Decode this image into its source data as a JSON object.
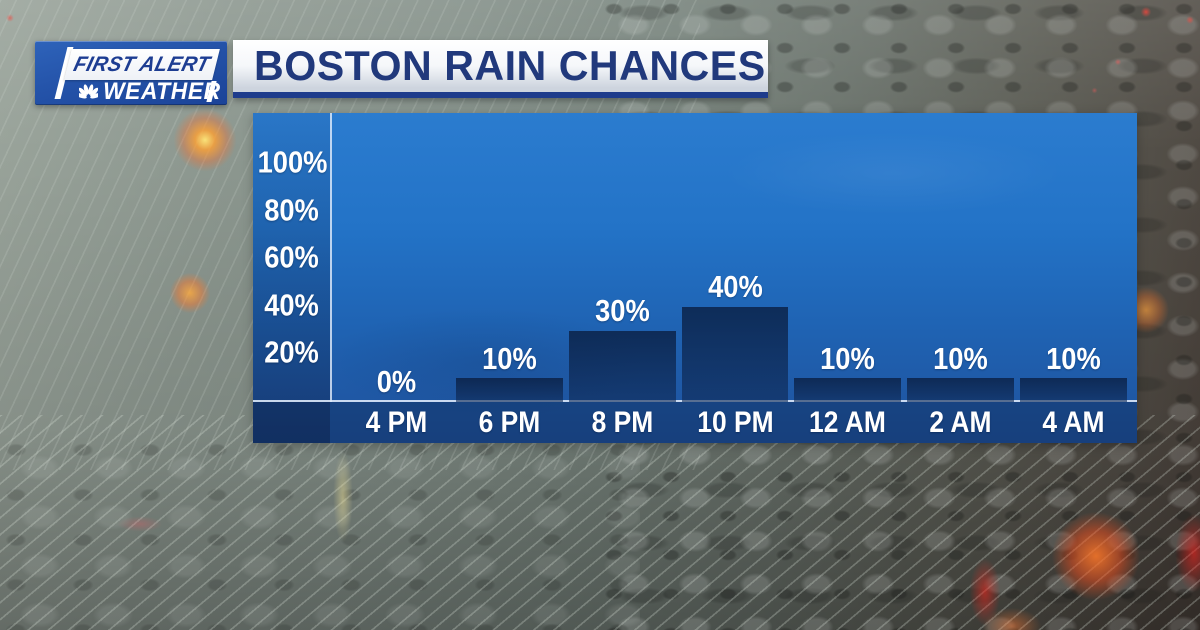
{
  "header": {
    "logo": {
      "line1": "FIRST ALERT",
      "line2": "WEATHER",
      "icon": "nbc-peacock-icon"
    },
    "title": "BOSTON RAIN CHANCES"
  },
  "chart_data": {
    "type": "bar",
    "title": "BOSTON RAIN CHANCES",
    "categories": [
      "4 PM",
      "6 PM",
      "8 PM",
      "10 PM",
      "12 AM",
      "2 AM",
      "4 AM"
    ],
    "values": [
      0,
      10,
      30,
      40,
      10,
      10,
      10
    ],
    "value_labels": [
      "0%",
      "10%",
      "30%",
      "40%",
      "10%",
      "10%",
      "10%"
    ],
    "y_ticks": [
      "100%",
      "80%",
      "60%",
      "40%",
      "20%"
    ],
    "y_tick_values": [
      100,
      80,
      60,
      40,
      20
    ],
    "ylim": [
      0,
      100
    ],
    "xlabel": "",
    "ylabel": "",
    "unit": "%",
    "grid": false,
    "legend_position": "none",
    "colors": {
      "panel_top": "#2b7ccf",
      "panel_bottom": "#1f519c",
      "bar": "rgba(10,31,66,0.72)",
      "axis_line": "rgba(226,237,252,0.9)",
      "label_text": "#ffffff",
      "title_text": "#21397c",
      "title_bar_border": "#1e3c8c",
      "logo_background": "#2453a9"
    }
  }
}
